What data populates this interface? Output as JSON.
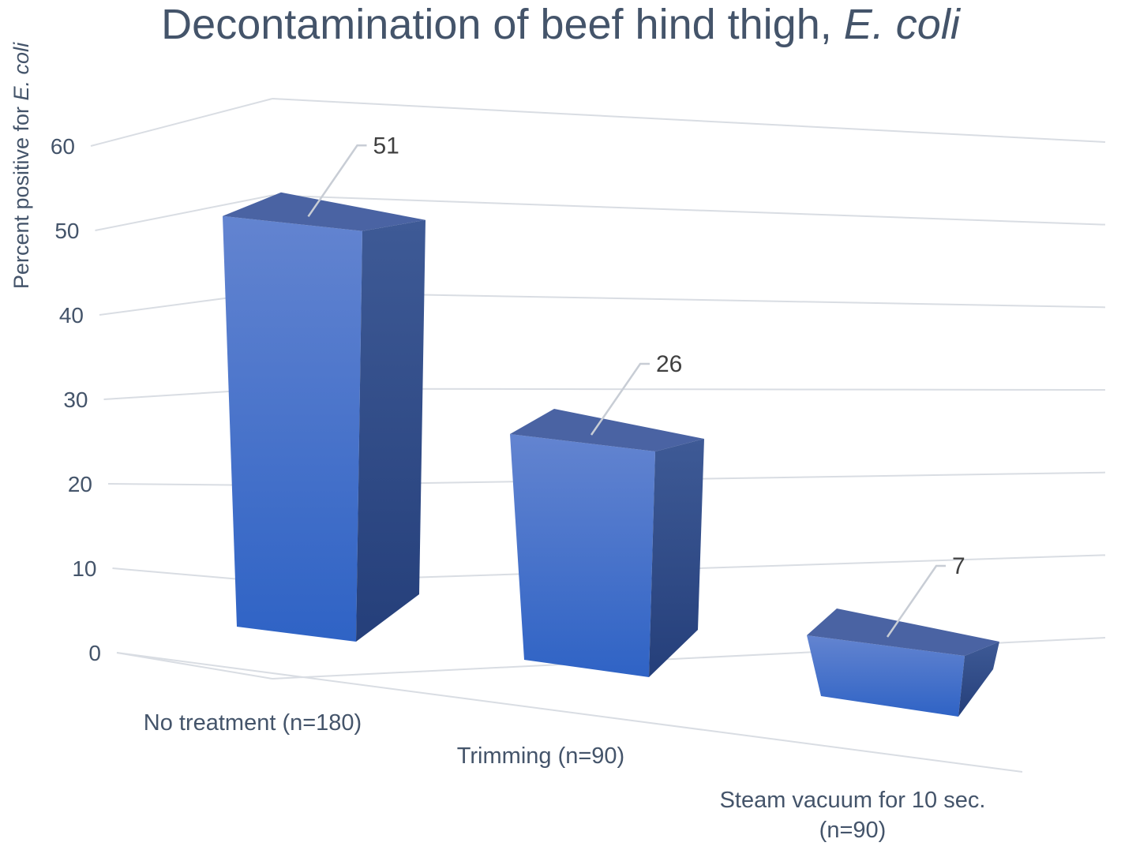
{
  "chart_data": {
    "type": "bar",
    "title": {
      "main": "Decontamination of beef hind thigh, ",
      "italic": "E. coli"
    },
    "ylabel": {
      "main": "Percent positive for ",
      "italic": "E. coli"
    },
    "xlabel": "",
    "categories": [
      "No treatment (n=180)",
      "Trimming (n=90)",
      "Steam vacuum for 10 sec. (n=90)"
    ],
    "values": [
      51,
      26,
      7
    ],
    "data_labels": [
      "51",
      "26",
      "7"
    ],
    "ylim": [
      0,
      60
    ],
    "yticks": [
      "0",
      "10",
      "20",
      "30",
      "40",
      "50",
      "60"
    ],
    "grid": true,
    "style": "3d-column",
    "colors": {
      "front": "#4472c4",
      "top": "#4a63a3",
      "side": "#2f4f8f",
      "grid": "#d9dde3",
      "text": "#44546a"
    }
  }
}
